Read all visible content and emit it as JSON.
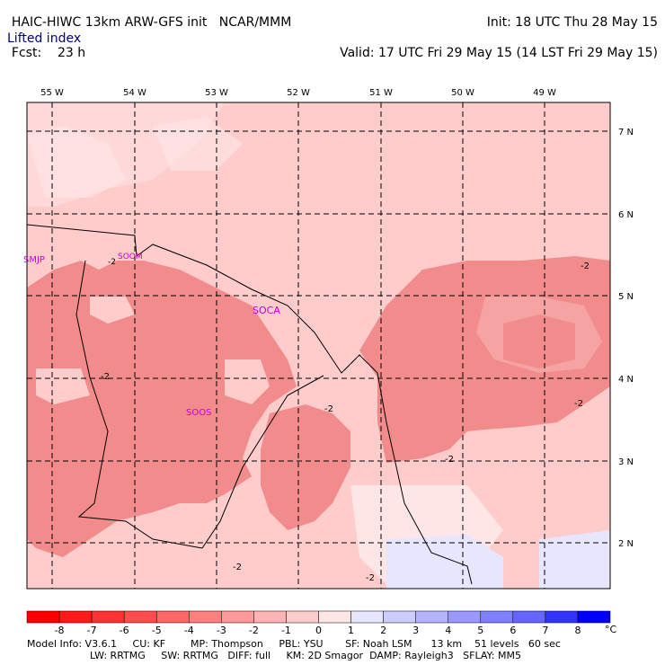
{
  "header": {
    "model": "HAIC-HIWC 13km ARW-GFS init",
    "org": "NCAR/MMM",
    "init": "Init: 18 UTC Thu 28 May 15",
    "fcst_label": "Fcst:",
    "fcst_value": "23 h",
    "valid": "Valid: 17 UTC Fri 29 May 15 (14 LST Fri 29 May 15)",
    "field": "Lifted index"
  },
  "map": {
    "lon_labels": [
      "55 W",
      "54 W",
      "53 W",
      "52 W",
      "51 W",
      "50 W",
      "49 W"
    ],
    "lat_labels": [
      "7 N",
      "6 N",
      "5 N",
      "4 N",
      "3 N",
      "2 N"
    ],
    "stations": [
      "SMJP",
      "SOCA",
      "SOOS",
      "SOOM"
    ],
    "contour_label": "-2",
    "colors": {
      "light": "#ffcccc",
      "medium": "#f28b8b",
      "mid": "#f5a3a3",
      "faint": "#ffe6e6",
      "blue": "#e6e6ff",
      "station": "#cc00cc"
    }
  },
  "legend": {
    "labels": [
      "-8",
      "-7",
      "-6",
      "-5",
      "-4",
      "-3",
      "-2",
      "-1",
      "0",
      "1",
      "2",
      "3",
      "4",
      "5",
      "6",
      "7",
      "8"
    ],
    "unit": "°C",
    "colors": [
      "#ff0000",
      "#ff1a1a",
      "#ff3333",
      "#ff4d4d",
      "#ff6666",
      "#ff8080",
      "#ff9999",
      "#ffb3b3",
      "#ffcccc",
      "#ffe6e6",
      "#e6e6ff",
      "#ccccff",
      "#b3b3ff",
      "#9999ff",
      "#8080ff",
      "#6666ff",
      "#3333ff",
      "#0000ff"
    ]
  },
  "footer": {
    "line1": "Model Info: V3.6.1     CU: KF        MP: Thompson     PBL: YSU       SF: Noah LSM      13 km    51 levels   60 sec",
    "line2": "LW: RRTMG     SW: RRTMG   DIFF: full     KM: 2D Smagor  DAMP: Rayleigh3   SFLAY: MM5"
  }
}
